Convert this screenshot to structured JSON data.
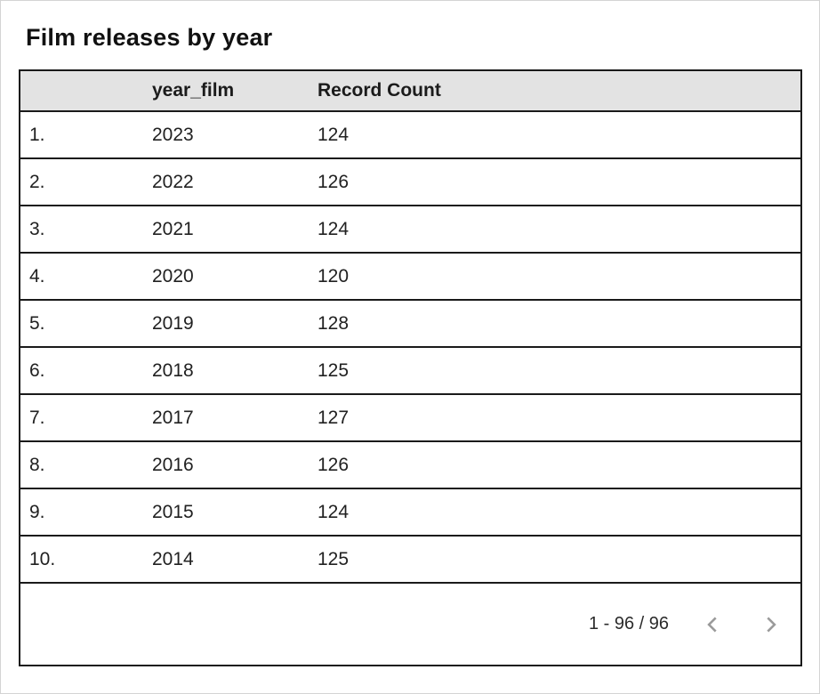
{
  "card": {
    "title": "Film releases by year"
  },
  "table": {
    "columns": [
      {
        "label": ""
      },
      {
        "label": "year_film"
      },
      {
        "label": "Record Count"
      }
    ],
    "rows": [
      {
        "index": "1.",
        "year": "2023",
        "count": "124"
      },
      {
        "index": "2.",
        "year": "2022",
        "count": "126"
      },
      {
        "index": "3.",
        "year": "2021",
        "count": "124"
      },
      {
        "index": "4.",
        "year": "2020",
        "count": "120"
      },
      {
        "index": "5.",
        "year": "2019",
        "count": "128"
      },
      {
        "index": "6.",
        "year": "2018",
        "count": "125"
      },
      {
        "index": "7.",
        "year": "2017",
        "count": "127"
      },
      {
        "index": "8.",
        "year": "2016",
        "count": "126"
      },
      {
        "index": "9.",
        "year": "2015",
        "count": "124"
      },
      {
        "index": "10.",
        "year": "2014",
        "count": "125"
      }
    ]
  },
  "pagination": {
    "range_label": "1 - 96 / 96",
    "prev_icon": "chevron-left",
    "next_icon": "chevron-right"
  },
  "colors": {
    "header_bg": "#e3e3e3",
    "border_dark": "#1a1a1a",
    "text": "#212121",
    "chevron": "#9a9a9a",
    "canvas_border": "#d4d4d4"
  },
  "chart_data": {
    "type": "table",
    "title": "Film releases by year",
    "columns": [
      "year_film",
      "Record Count"
    ],
    "rows": [
      [
        2023,
        124
      ],
      [
        2022,
        126
      ],
      [
        2021,
        124
      ],
      [
        2020,
        120
      ],
      [
        2019,
        128
      ],
      [
        2018,
        125
      ],
      [
        2017,
        127
      ],
      [
        2016,
        126
      ],
      [
        2015,
        124
      ],
      [
        2014,
        125
      ]
    ],
    "pagination_label": "1 - 96 / 96",
    "visible_rows": "1 - 96",
    "total_records": 96
  }
}
